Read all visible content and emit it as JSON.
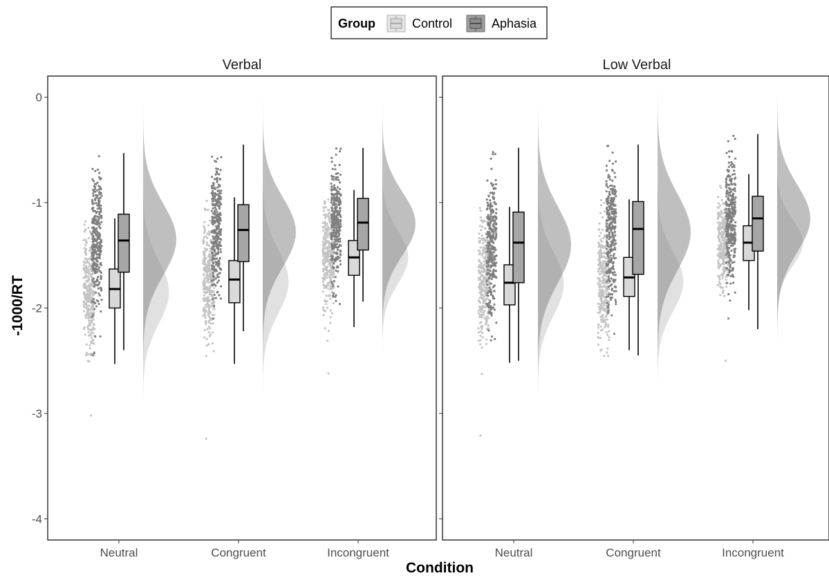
{
  "chart_data": {
    "type": "raincloud",
    "x_title": "Condition",
    "y_title": "-1000/RT",
    "ylim": [
      -4.2,
      0.2
    ],
    "y_ticks": [
      0,
      -1,
      -2,
      -3,
      -4
    ],
    "categories": [
      "Neutral",
      "Congruent",
      "Incongruent"
    ],
    "legend": {
      "title": "Group",
      "position": "top",
      "entries": [
        {
          "name": "Control",
          "color": "#c8c8c8"
        },
        {
          "name": "Aphasia",
          "color": "#8c8c8c"
        }
      ]
    },
    "panels": [
      {
        "title": "Verbal",
        "groups": [
          {
            "condition": "Neutral",
            "group": "Control",
            "box": {
              "min": -2.53,
              "q1": -2.0,
              "median": -1.82,
              "q3": -1.63,
              "max": -1.15
            },
            "density": {
              "mean": -1.85,
              "sd": 0.3
            },
            "points_range": [
              -2.75,
              -1.15
            ],
            "outliers": [
              -3.02
            ]
          },
          {
            "condition": "Neutral",
            "group": "Aphasia",
            "box": {
              "min": -2.4,
              "q1": -1.66,
              "median": -1.36,
              "q3": -1.11,
              "max": -0.53
            },
            "density": {
              "mean": -1.35,
              "sd": 0.34
            },
            "points_range": [
              -2.45,
              -0.53
            ],
            "outliers": []
          },
          {
            "condition": "Congruent",
            "group": "Control",
            "box": {
              "min": -2.53,
              "q1": -1.95,
              "median": -1.73,
              "q3": -1.55,
              "max": -0.95
            },
            "density": {
              "mean": -1.75,
              "sd": 0.3
            },
            "points_range": [
              -2.68,
              -0.95
            ],
            "outliers": [
              -3.24
            ]
          },
          {
            "condition": "Congruent",
            "group": "Aphasia",
            "box": {
              "min": -2.22,
              "q1": -1.56,
              "median": -1.26,
              "q3": -1.02,
              "max": -0.45
            },
            "density": {
              "mean": -1.28,
              "sd": 0.33
            },
            "points_range": [
              -2.3,
              -0.45
            ],
            "outliers": []
          },
          {
            "condition": "Incongruent",
            "group": "Control",
            "box": {
              "min": -2.18,
              "q1": -1.69,
              "median": -1.52,
              "q3": -1.36,
              "max": -0.88
            },
            "density": {
              "mean": -1.52,
              "sd": 0.25
            },
            "points_range": [
              -2.35,
              -0.8
            ],
            "outliers": [
              -2.62
            ]
          },
          {
            "condition": "Incongruent",
            "group": "Aphasia",
            "box": {
              "min": -1.94,
              "q1": -1.45,
              "median": -1.19,
              "q3": -0.96,
              "max": -0.48
            },
            "density": {
              "mean": -1.2,
              "sd": 0.3
            },
            "points_range": [
              -2.0,
              -0.48
            ],
            "outliers": []
          }
        ]
      },
      {
        "title": "Low Verbal",
        "groups": [
          {
            "condition": "Neutral",
            "group": "Control",
            "box": {
              "min": -2.52,
              "q1": -1.97,
              "median": -1.76,
              "q3": -1.59,
              "max": -1.04
            },
            "density": {
              "mean": -1.77,
              "sd": 0.3
            },
            "points_range": [
              -2.75,
              -1.0
            ],
            "outliers": [
              -3.21
            ]
          },
          {
            "condition": "Neutral",
            "group": "Aphasia",
            "box": {
              "min": -2.5,
              "q1": -1.76,
              "median": -1.38,
              "q3": -1.09,
              "max": -0.48
            },
            "density": {
              "mean": -1.4,
              "sd": 0.36
            },
            "points_range": [
              -2.5,
              -0.48
            ],
            "outliers": []
          },
          {
            "condition": "Congruent",
            "group": "Control",
            "box": {
              "min": -2.4,
              "q1": -1.89,
              "median": -1.71,
              "q3": -1.52,
              "max": -0.97
            },
            "density": {
              "mean": -1.75,
              "sd": 0.28
            },
            "points_range": [
              -2.65,
              -0.97
            ],
            "outliers": []
          },
          {
            "condition": "Congruent",
            "group": "Aphasia",
            "box": {
              "min": -2.45,
              "q1": -1.68,
              "median": -1.25,
              "q3": -0.99,
              "max": -0.45
            },
            "density": {
              "mean": -1.28,
              "sd": 0.36
            },
            "points_range": [
              -2.5,
              -0.45
            ],
            "outliers": []
          },
          {
            "condition": "Incongruent",
            "group": "Control",
            "box": {
              "min": -2.02,
              "q1": -1.55,
              "median": -1.38,
              "q3": -1.22,
              "max": -0.73
            },
            "density": {
              "mean": -1.38,
              "sd": 0.22
            },
            "points_range": [
              -2.2,
              -0.73
            ],
            "outliers": [
              -2.5
            ]
          },
          {
            "condition": "Incongruent",
            "group": "Aphasia",
            "box": {
              "min": -2.2,
              "q1": -1.46,
              "median": -1.15,
              "q3": -0.94,
              "max": -0.35
            },
            "density": {
              "mean": -1.15,
              "sd": 0.32
            },
            "points_range": [
              -2.22,
              -0.35
            ],
            "outliers": []
          }
        ]
      }
    ]
  }
}
